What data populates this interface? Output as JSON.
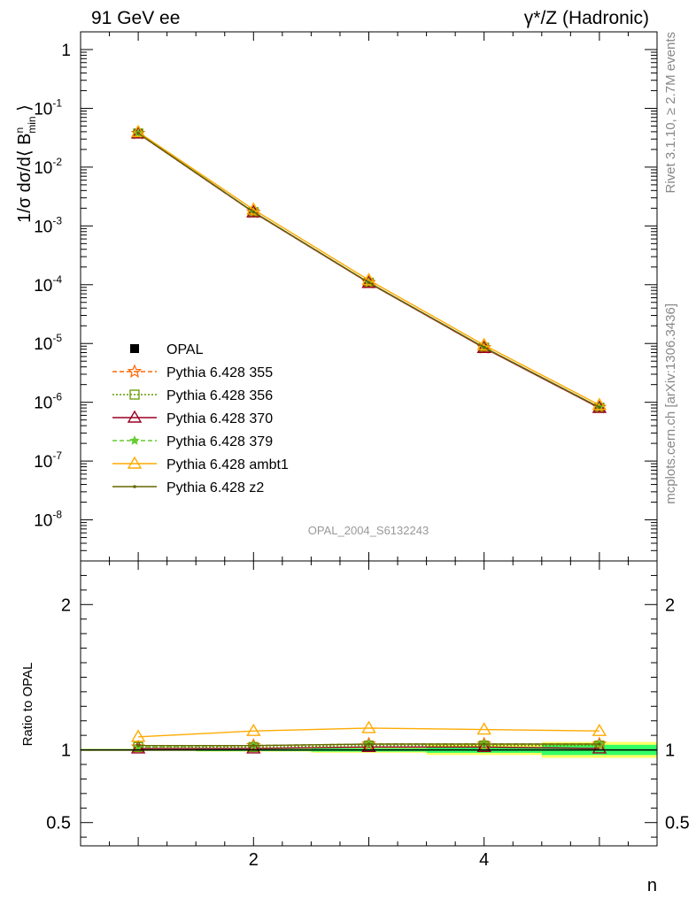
{
  "header": {
    "left": "91 GeV ee",
    "right": "γ*/Z (Hadronic)"
  },
  "side": {
    "rivet": "Rivet 3.1.10, ≥ 2.7M events",
    "mcplots": "mcplots.cern.ch [arXiv:1306.3436]"
  },
  "watermark": "OPAL_2004_S6132243",
  "colors": {
    "opal": "#000000",
    "p355": "#ff6600",
    "p356": "#669900",
    "p370": "#990022",
    "p379": "#66cc33",
    "ambt1": "#ffaa00",
    "z2": "#666600",
    "band_inner": "#33ff66",
    "band_outer": "#ffff66"
  },
  "chart_data": [
    {
      "type": "line",
      "panel": "main",
      "ylabel": "1/σ dσ/d⟨ B^n_min ⟩",
      "yscale": "log",
      "ylim": [
        2e-09,
        2
      ],
      "xlim": [
        0.5,
        5.5
      ],
      "ytick_labels": [
        "1",
        "10^-1",
        "10^-2",
        "10^-3",
        "10^-4",
        "10^-5",
        "10^-6",
        "10^-7",
        "10^-8"
      ],
      "legend_position": "lower-left",
      "x": [
        1,
        2,
        3,
        4,
        5
      ],
      "series": [
        {
          "name": "OPAL",
          "key": "opal",
          "values": [
            0.0368,
            0.00168,
            0.000105,
            8.2e-06,
            7.9e-07
          ]
        },
        {
          "name": "Pythia 6.428 355",
          "key": "p355",
          "values": [
            0.0375,
            0.00172,
            0.000109,
            8.5e-06,
            8.2e-07
          ]
        },
        {
          "name": "Pythia 6.428 356",
          "key": "p356",
          "values": [
            0.0374,
            0.00171,
            0.000108,
            8.5e-06,
            8.1e-07
          ]
        },
        {
          "name": "Pythia 6.428 370",
          "key": "p370",
          "values": [
            0.0372,
            0.0017,
            0.000107,
            8.4e-06,
            8e-07
          ]
        },
        {
          "name": "Pythia 6.428 379",
          "key": "p379",
          "values": [
            0.0376,
            0.00172,
            0.000109,
            8.6e-06,
            8.2e-07
          ]
        },
        {
          "name": "Pythia 6.428 ambt1",
          "key": "ambt1",
          "values": [
            0.0395,
            0.0019,
            0.00012,
            9.4e-06,
            9e-07
          ]
        },
        {
          "name": "Pythia 6.428 z2",
          "key": "z2",
          "values": [
            0.0377,
            0.00173,
            0.000109,
            8.6e-06,
            8.2e-07
          ]
        }
      ]
    },
    {
      "type": "line",
      "panel": "ratio",
      "ylabel": "Ratio to OPAL",
      "xlabel": "n",
      "ylim": [
        0.34,
        2.3
      ],
      "xlim": [
        0.5,
        5.5
      ],
      "xtick_labels": [
        "2",
        "4"
      ],
      "ytick_labels": [
        "0.5",
        "1",
        "2"
      ],
      "x": [
        1,
        2,
        3,
        4,
        5
      ],
      "band_x": [
        [
          0.5,
          1.5
        ],
        [
          1.5,
          2.5
        ],
        [
          2.5,
          3.5
        ],
        [
          3.5,
          4.5
        ],
        [
          4.5,
          5.5
        ]
      ],
      "band_inner": [
        0.005,
        0.008,
        0.012,
        0.02,
        0.035
      ],
      "band_outer": [
        0.008,
        0.012,
        0.02,
        0.035,
        0.055
      ],
      "series": [
        {
          "name": "Pythia 6.428 355",
          "key": "p355",
          "values": [
            1.02,
            1.03,
            1.04,
            1.04,
            1.04
          ]
        },
        {
          "name": "Pythia 6.428 356",
          "key": "p356",
          "values": [
            1.02,
            1.02,
            1.03,
            1.03,
            1.03
          ]
        },
        {
          "name": "Pythia 6.428 370",
          "key": "p370",
          "values": [
            1.01,
            1.01,
            1.02,
            1.02,
            1.01
          ]
        },
        {
          "name": "Pythia 6.428 379",
          "key": "p379",
          "values": [
            1.02,
            1.03,
            1.04,
            1.04,
            1.04
          ]
        },
        {
          "name": "Pythia 6.428 ambt1",
          "key": "ambt1",
          "values": [
            1.09,
            1.13,
            1.15,
            1.14,
            1.13
          ]
        },
        {
          "name": "Pythia 6.428 z2",
          "key": "z2",
          "values": [
            1.03,
            1.03,
            1.04,
            1.04,
            1.04
          ]
        }
      ]
    }
  ]
}
